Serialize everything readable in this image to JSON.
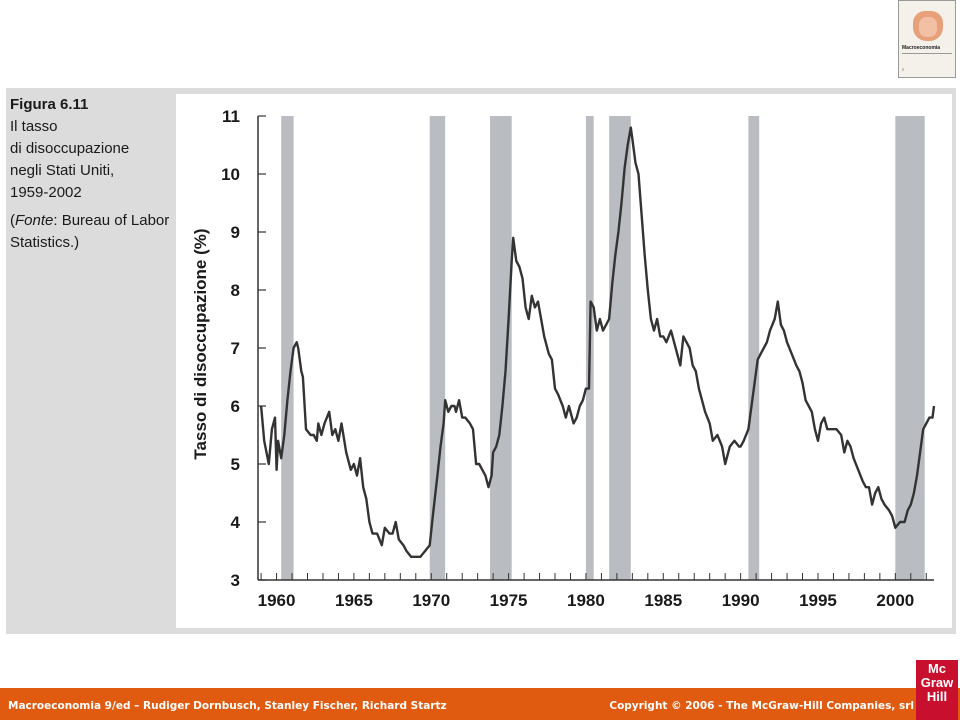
{
  "caption": {
    "figure_number": "Figura 6.11",
    "line1": "Il tasso",
    "line2": "di disoccupazione",
    "line3": "negli Stati Uniti,",
    "line4": "1959-2002",
    "source_open": "(",
    "source_word": "Fonte",
    "source_rest": ": Bureau of Labor Statistics.)"
  },
  "book_cover": {
    "title": "Macroeconomia"
  },
  "footer": {
    "left": "Macroeconomia 9/ed – Rudiger Dornbusch, Stanley Fischer, Richard Startz",
    "right": "Copyright © 2006 - The McGraw-Hill Companies, srl"
  },
  "logo": {
    "line1": "Mc",
    "line2": "Graw",
    "line3": "Hill"
  },
  "colors": {
    "line": "#333333",
    "recession": "#b9bdc2",
    "footer": "#e05a0f",
    "panel": "#dcdcdc"
  },
  "chart_data": {
    "type": "line",
    "title": "",
    "xlabel": "",
    "ylabel": "Tasso di disoccupazione (%)",
    "xlim": [
      1958.8,
      2002.5
    ],
    "ylim": [
      3,
      11
    ],
    "x_ticks": [
      "1960",
      "1965",
      "1970",
      "1975",
      "1980",
      "1985",
      "1990",
      "1995",
      "2000"
    ],
    "y_ticks": [
      "3",
      "4",
      "5",
      "6",
      "7",
      "8",
      "9",
      "10",
      "11"
    ],
    "grid": false,
    "recessions": [
      [
        1960.3,
        1961.1
      ],
      [
        1969.9,
        1970.9
      ],
      [
        1973.8,
        1975.2
      ],
      [
        1980.0,
        1980.5
      ],
      [
        1981.5,
        1982.9
      ],
      [
        1990.5,
        1991.2
      ],
      [
        2000.0,
        2001.9
      ]
    ],
    "series": [
      {
        "values": [
          [
            1959.0,
            6.0
          ],
          [
            1959.2,
            5.4
          ],
          [
            1959.5,
            5.0
          ],
          [
            1959.7,
            5.6
          ],
          [
            1959.9,
            5.8
          ],
          [
            1960.0,
            4.9
          ],
          [
            1960.1,
            5.4
          ],
          [
            1960.3,
            5.1
          ],
          [
            1960.5,
            5.5
          ],
          [
            1960.7,
            6.1
          ],
          [
            1960.9,
            6.6
          ],
          [
            1961.1,
            7.0
          ],
          [
            1961.3,
            7.1
          ],
          [
            1961.4,
            7.0
          ],
          [
            1961.6,
            6.6
          ],
          [
            1961.7,
            6.5
          ],
          [
            1961.9,
            5.6
          ],
          [
            1962.2,
            5.5
          ],
          [
            1962.4,
            5.5
          ],
          [
            1962.6,
            5.4
          ],
          [
            1962.7,
            5.7
          ],
          [
            1962.9,
            5.5
          ],
          [
            1963.1,
            5.7
          ],
          [
            1963.4,
            5.9
          ],
          [
            1963.6,
            5.5
          ],
          [
            1963.8,
            5.6
          ],
          [
            1964.0,
            5.4
          ],
          [
            1964.2,
            5.7
          ],
          [
            1964.5,
            5.2
          ],
          [
            1964.8,
            4.9
          ],
          [
            1965.0,
            5.0
          ],
          [
            1965.2,
            4.8
          ],
          [
            1965.4,
            5.1
          ],
          [
            1965.6,
            4.6
          ],
          [
            1965.8,
            4.4
          ],
          [
            1966.0,
            4.0
          ],
          [
            1966.2,
            3.8
          ],
          [
            1966.5,
            3.8
          ],
          [
            1966.8,
            3.6
          ],
          [
            1967.0,
            3.9
          ],
          [
            1967.3,
            3.8
          ],
          [
            1967.5,
            3.8
          ],
          [
            1967.7,
            4.0
          ],
          [
            1967.9,
            3.7
          ],
          [
            1968.2,
            3.6
          ],
          [
            1968.4,
            3.5
          ],
          [
            1968.7,
            3.4
          ],
          [
            1969.0,
            3.4
          ],
          [
            1969.3,
            3.4
          ],
          [
            1969.6,
            3.5
          ],
          [
            1969.9,
            3.6
          ],
          [
            1970.1,
            4.1
          ],
          [
            1970.4,
            4.8
          ],
          [
            1970.6,
            5.3
          ],
          [
            1970.8,
            5.7
          ],
          [
            1970.9,
            6.1
          ],
          [
            1971.1,
            5.9
          ],
          [
            1971.3,
            6.0
          ],
          [
            1971.5,
            6.0
          ],
          [
            1971.6,
            5.9
          ],
          [
            1971.8,
            6.1
          ],
          [
            1972.0,
            5.8
          ],
          [
            1972.2,
            5.8
          ],
          [
            1972.5,
            5.7
          ],
          [
            1972.7,
            5.6
          ],
          [
            1972.9,
            5.0
          ],
          [
            1973.1,
            5.0
          ],
          [
            1973.3,
            4.9
          ],
          [
            1973.5,
            4.8
          ],
          [
            1973.7,
            4.6
          ],
          [
            1973.9,
            4.8
          ],
          [
            1974.0,
            5.2
          ],
          [
            1974.2,
            5.3
          ],
          [
            1974.4,
            5.5
          ],
          [
            1974.6,
            6.0
          ],
          [
            1974.8,
            6.6
          ],
          [
            1975.0,
            7.5
          ],
          [
            1975.2,
            8.5
          ],
          [
            1975.3,
            8.9
          ],
          [
            1975.5,
            8.5
          ],
          [
            1975.7,
            8.4
          ],
          [
            1975.9,
            8.2
          ],
          [
            1976.1,
            7.7
          ],
          [
            1976.3,
            7.5
          ],
          [
            1976.5,
            7.9
          ],
          [
            1976.7,
            7.7
          ],
          [
            1976.9,
            7.8
          ],
          [
            1977.1,
            7.5
          ],
          [
            1977.3,
            7.2
          ],
          [
            1977.6,
            6.9
          ],
          [
            1977.8,
            6.8
          ],
          [
            1978.0,
            6.3
          ],
          [
            1978.2,
            6.2
          ],
          [
            1978.5,
            6.0
          ],
          [
            1978.7,
            5.8
          ],
          [
            1978.9,
            6.0
          ],
          [
            1979.2,
            5.7
          ],
          [
            1979.4,
            5.8
          ],
          [
            1979.6,
            6.0
          ],
          [
            1979.8,
            6.1
          ],
          [
            1980.0,
            6.3
          ],
          [
            1980.2,
            6.3
          ],
          [
            1980.3,
            7.8
          ],
          [
            1980.5,
            7.7
          ],
          [
            1980.7,
            7.3
          ],
          [
            1980.9,
            7.5
          ],
          [
            1981.1,
            7.3
          ],
          [
            1981.3,
            7.4
          ],
          [
            1981.5,
            7.5
          ],
          [
            1981.7,
            8.1
          ],
          [
            1981.9,
            8.6
          ],
          [
            1982.1,
            9.0
          ],
          [
            1982.3,
            9.5
          ],
          [
            1982.5,
            10.1
          ],
          [
            1982.7,
            10.5
          ],
          [
            1982.9,
            10.8
          ],
          [
            1983.0,
            10.6
          ],
          [
            1983.2,
            10.2
          ],
          [
            1983.4,
            10.0
          ],
          [
            1983.6,
            9.3
          ],
          [
            1983.8,
            8.6
          ],
          [
            1984.0,
            8.0
          ],
          [
            1984.2,
            7.5
          ],
          [
            1984.4,
            7.3
          ],
          [
            1984.6,
            7.5
          ],
          [
            1984.8,
            7.2
          ],
          [
            1985.0,
            7.2
          ],
          [
            1985.2,
            7.1
          ],
          [
            1985.5,
            7.3
          ],
          [
            1985.7,
            7.1
          ],
          [
            1985.9,
            6.9
          ],
          [
            1986.1,
            6.7
          ],
          [
            1986.3,
            7.2
          ],
          [
            1986.5,
            7.1
          ],
          [
            1986.7,
            7.0
          ],
          [
            1986.9,
            6.7
          ],
          [
            1987.1,
            6.6
          ],
          [
            1987.3,
            6.3
          ],
          [
            1987.5,
            6.1
          ],
          [
            1987.7,
            5.9
          ],
          [
            1988.0,
            5.7
          ],
          [
            1988.2,
            5.4
          ],
          [
            1988.5,
            5.5
          ],
          [
            1988.8,
            5.3
          ],
          [
            1989.0,
            5.0
          ],
          [
            1989.3,
            5.3
          ],
          [
            1989.6,
            5.4
          ],
          [
            1989.9,
            5.3
          ],
          [
            1990.0,
            5.3
          ],
          [
            1990.2,
            5.4
          ],
          [
            1990.5,
            5.6
          ],
          [
            1990.7,
            6.0
          ],
          [
            1990.9,
            6.4
          ],
          [
            1991.1,
            6.8
          ],
          [
            1991.3,
            6.9
          ],
          [
            1991.5,
            7.0
          ],
          [
            1991.7,
            7.1
          ],
          [
            1991.9,
            7.3
          ],
          [
            1992.2,
            7.5
          ],
          [
            1992.4,
            7.8
          ],
          [
            1992.6,
            7.4
          ],
          [
            1992.8,
            7.3
          ],
          [
            1993.0,
            7.1
          ],
          [
            1993.3,
            6.9
          ],
          [
            1993.6,
            6.7
          ],
          [
            1993.8,
            6.6
          ],
          [
            1994.0,
            6.4
          ],
          [
            1994.2,
            6.1
          ],
          [
            1994.4,
            6.0
          ],
          [
            1994.6,
            5.9
          ],
          [
            1994.8,
            5.6
          ],
          [
            1995.0,
            5.4
          ],
          [
            1995.2,
            5.7
          ],
          [
            1995.4,
            5.8
          ],
          [
            1995.6,
            5.6
          ],
          [
            1995.9,
            5.6
          ],
          [
            1996.2,
            5.6
          ],
          [
            1996.5,
            5.5
          ],
          [
            1996.7,
            5.2
          ],
          [
            1996.9,
            5.4
          ],
          [
            1997.1,
            5.3
          ],
          [
            1997.3,
            5.1
          ],
          [
            1997.6,
            4.9
          ],
          [
            1997.9,
            4.7
          ],
          [
            1998.1,
            4.6
          ],
          [
            1998.3,
            4.6
          ],
          [
            1998.5,
            4.3
          ],
          [
            1998.7,
            4.5
          ],
          [
            1998.9,
            4.6
          ],
          [
            1999.1,
            4.4
          ],
          [
            1999.3,
            4.3
          ],
          [
            1999.6,
            4.2
          ],
          [
            1999.8,
            4.1
          ],
          [
            2000.0,
            3.9
          ],
          [
            2000.3,
            4.0
          ],
          [
            2000.6,
            4.0
          ],
          [
            2000.8,
            4.2
          ],
          [
            2001.0,
            4.3
          ],
          [
            2001.2,
            4.5
          ],
          [
            2001.4,
            4.8
          ],
          [
            2001.6,
            5.2
          ],
          [
            2001.8,
            5.6
          ],
          [
            2002.0,
            5.7
          ],
          [
            2002.2,
            5.8
          ],
          [
            2002.4,
            5.8
          ],
          [
            2002.5,
            6.0
          ]
        ]
      }
    ]
  }
}
